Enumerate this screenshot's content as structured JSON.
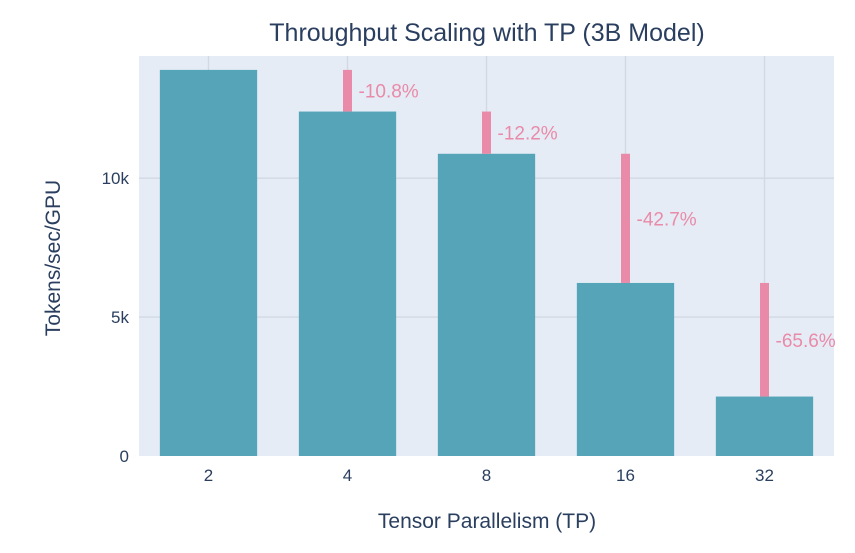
{
  "chart_data": {
    "type": "bar",
    "title": "Throughput Scaling with TP (3B Model)",
    "xlabel": "Tensor Parallelism (TP)",
    "ylabel": "Tokens/sec/GPU",
    "categories": [
      "2",
      "4",
      "8",
      "16",
      "32"
    ],
    "values": [
      13900,
      12400,
      10880,
      6230,
      2140
    ],
    "drops": [
      {
        "from": 13900,
        "to": 12400,
        "label": "-10.8%"
      },
      {
        "from": 12400,
        "to": 10880,
        "label": "-12.2%"
      },
      {
        "from": 10880,
        "to": 6230,
        "label": "-42.7%"
      },
      {
        "from": 6230,
        "to": 2140,
        "label": "-65.6%"
      }
    ],
    "ylim": [
      0,
      14400
    ],
    "yticks": [
      0,
      5000,
      10000
    ],
    "ytick_labels": [
      "0",
      "5k",
      "10k"
    ],
    "grid": true,
    "colors": {
      "bar": "#55a4b8",
      "drop": "#e98aa8",
      "plot_bg": "#e5ecf6",
      "grid": "#ffffff",
      "text": "#2a3f5f"
    }
  }
}
